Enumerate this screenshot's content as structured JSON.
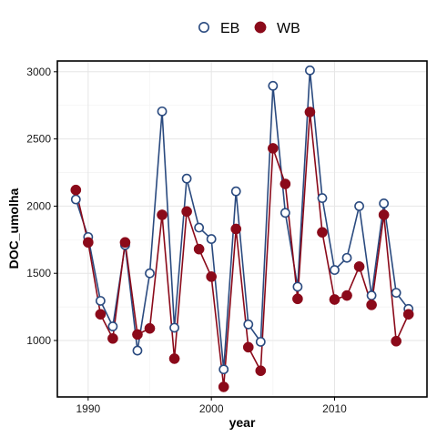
{
  "chart_data": {
    "type": "line",
    "xlabel": "year",
    "ylabel": "DOC_umolha",
    "xlim": [
      1987.5,
      2017.5
    ],
    "ylim": [
      580,
      3080
    ],
    "x_ticks": [
      1990,
      2000,
      2010
    ],
    "y_ticks": [
      1000,
      1500,
      2000,
      2500,
      3000
    ],
    "grid": true,
    "legend": "top",
    "x": [
      1989,
      1990,
      1991,
      1992,
      1993,
      1994,
      1995,
      1996,
      1997,
      1998,
      1999,
      2000,
      2001,
      2002,
      2003,
      2004,
      2005,
      2006,
      2007,
      2008,
      2009,
      2010,
      2011,
      2012,
      2013,
      2014,
      2015,
      2016
    ],
    "series": [
      {
        "name": "EB",
        "color": "#2a4a7f",
        "marker": "open-circle",
        "values": [
          2050,
          1770,
          1295,
          1105,
          1710,
          925,
          1500,
          2705,
          1095,
          2205,
          1840,
          1755,
          785,
          2110,
          1120,
          990,
          2895,
          1950,
          1400,
          3010,
          2060,
          1525,
          1615,
          2000,
          1335,
          2020,
          1355,
          1235
        ]
      },
      {
        "name": "WB",
        "color": "#8b0a1a",
        "marker": "filled-circle",
        "values": [
          2120,
          1730,
          1195,
          1015,
          1730,
          1045,
          1090,
          1935,
          865,
          1960,
          1680,
          1475,
          655,
          1830,
          950,
          775,
          2430,
          2165,
          1310,
          2700,
          1805,
          1305,
          1335,
          1550,
          1265,
          1935,
          995,
          1195
        ]
      }
    ]
  }
}
